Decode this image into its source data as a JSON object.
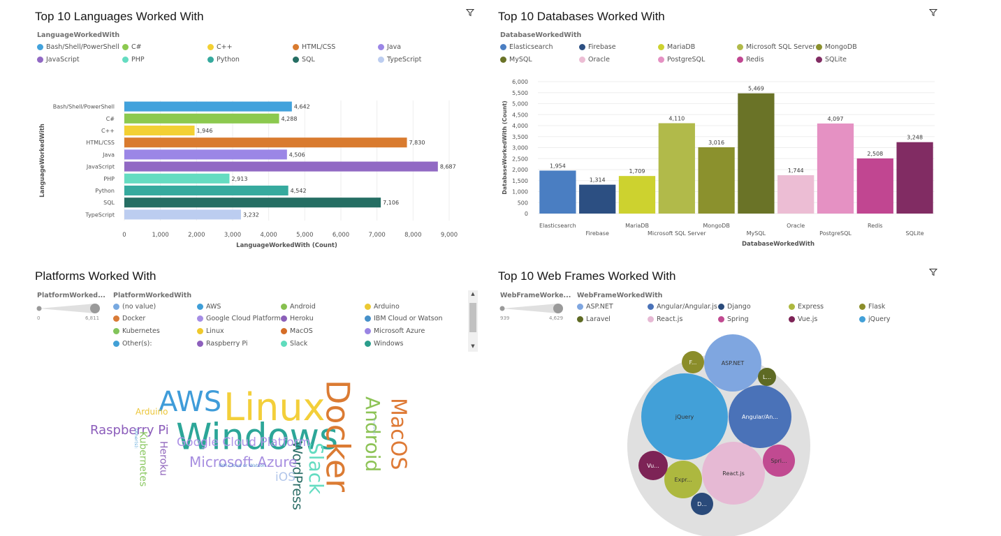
{
  "panels": {
    "languages": {
      "title": "Top 10 Languages Worked With",
      "legend_title": "LanguageWorkedWith"
    },
    "databases": {
      "title": "Top 10 Databases Worked With",
      "legend_title": "DatabaseWorkedWith"
    },
    "platforms": {
      "title": "Platforms Worked With",
      "slider_title": "PlatformWorked...",
      "slider_min": "0",
      "slider_max": "6,811",
      "legend_title": "PlatformWorkedWith",
      "legend": [
        {
          "label": "(no value)",
          "color": "#78a9e0"
        },
        {
          "label": "AWS",
          "color": "#3e9ed8"
        },
        {
          "label": "Android",
          "color": "#87c04f"
        },
        {
          "label": "Arduino",
          "color": "#ecc932"
        },
        {
          "label": "Docker",
          "color": "#d97b37"
        },
        {
          "label": "Google Cloud Platform",
          "color": "#a58de5"
        },
        {
          "label": "Heroku",
          "color": "#8b5fb8"
        },
        {
          "label": "IBM Cloud or Watson",
          "color": "#4690c9"
        },
        {
          "label": "Kubernetes",
          "color": "#82c45a"
        },
        {
          "label": "Linux",
          "color": "#efc92c"
        },
        {
          "label": "MacOS",
          "color": "#d56d27"
        },
        {
          "label": "Microsoft Azure",
          "color": "#9a84e3"
        },
        {
          "label": "Other(s):",
          "color": "#41a0d6"
        },
        {
          "label": "Raspberry Pi",
          "color": "#8d5fbc"
        },
        {
          "label": "Slack",
          "color": "#5fdcbd"
        },
        {
          "label": "Windows",
          "color": "#2a9d8b"
        }
      ],
      "cloud": [
        {
          "text": "Windows",
          "color": "#2ca698"
        },
        {
          "text": "Linux",
          "color": "#f3cf3a"
        },
        {
          "text": "Docker",
          "color": "#db7b33"
        },
        {
          "text": "AWS",
          "color": "#3f9cd9"
        },
        {
          "text": "MacOS",
          "color": "#de7a36"
        },
        {
          "text": "Android",
          "color": "#8dc356"
        },
        {
          "text": "Slack",
          "color": "#64dcc1"
        },
        {
          "text": "WordPress",
          "color": "#2b6d66"
        },
        {
          "text": "Microsoft Azure",
          "color": "#a78ee0"
        },
        {
          "text": "Google Cloud Platform",
          "color": "#ae93e6"
        },
        {
          "text": "Raspberry Pi",
          "color": "#8c5dbb"
        },
        {
          "text": "Arduino",
          "color": "#ecc638"
        },
        {
          "text": "Kubernetes",
          "color": "#8bc862"
        },
        {
          "text": "Heroku",
          "color": "#9065bc"
        },
        {
          "text": "iOS",
          "color": "#b2c6ea"
        },
        {
          "text": "IBM Cloud or Watson",
          "color": "#5a92d0"
        },
        {
          "text": "Other(s):",
          "color": "#5aa6d8"
        },
        {
          "text": "(no value)",
          "color": "#9bbae3"
        }
      ]
    },
    "webframes": {
      "title": "Top 10 Web Frames Worked With",
      "slider_title": "WebFrameWorke...",
      "slider_min": "939",
      "slider_max": "4,629",
      "legend_title": "WebFrameWorkedWith",
      "legend": [
        {
          "label": "ASP.NET",
          "color": "#7fa6e0"
        },
        {
          "label": "Angular/Angular.js",
          "color": "#4a72b8"
        },
        {
          "label": "Django",
          "color": "#2a4a7a"
        },
        {
          "label": "Express",
          "color": "#adb83f"
        },
        {
          "label": "Flask",
          "color": "#8b8d2a"
        },
        {
          "label": "Laravel",
          "color": "#5e6a24"
        },
        {
          "label": "React.js",
          "color": "#e6b9d4"
        },
        {
          "label": "Spring",
          "color": "#c14a91"
        },
        {
          "label": "Vue.js",
          "color": "#7d2356"
        },
        {
          "label": "jQuery",
          "color": "#42a0d8"
        }
      ],
      "bubbles": [
        {
          "label": "jQuery",
          "color": "#42a0d8"
        },
        {
          "label": "ASP.NET",
          "color": "#7fa6e0"
        },
        {
          "label": "Angular/An...",
          "color": "#4a72b8"
        },
        {
          "label": "React.js",
          "color": "#e6b9d4"
        },
        {
          "label": "Spri...",
          "color": "#c14a91"
        },
        {
          "label": "Expr...",
          "color": "#adb83f"
        },
        {
          "label": "Vu...",
          "color": "#7d2356"
        },
        {
          "label": "D...",
          "color": "#2a4a7a"
        },
        {
          "label": "F...",
          "color": "#8b8d2a"
        },
        {
          "label": "L...",
          "color": "#5e6a24"
        }
      ]
    }
  },
  "chart_data": [
    {
      "type": "bar",
      "orientation": "horizontal",
      "title": "Top 10 Languages Worked With",
      "xlabel": "LanguageWorkedWith (Count)",
      "ylabel": "LanguageWorkedWith",
      "xlim": [
        0,
        9000
      ],
      "xticks": [
        "0",
        "1,000",
        "2,000",
        "3,000",
        "4,000",
        "5,000",
        "6,000",
        "7,000",
        "8,000",
        "9,000"
      ],
      "categories": [
        "Bash/Shell/PowerShell",
        "C#",
        "C++",
        "HTML/CSS",
        "Java",
        "JavaScript",
        "PHP",
        "Python",
        "SQL",
        "TypeScript"
      ],
      "values": [
        4642,
        4288,
        1946,
        7830,
        4506,
        8687,
        2913,
        4542,
        7106,
        3232
      ],
      "value_labels": [
        "4,642",
        "4,288",
        "1,946",
        "7,830",
        "4,506",
        "8,687",
        "2,913",
        "4,542",
        "7,106",
        "3,232"
      ],
      "colors": [
        "#42a2dc",
        "#8cc94f",
        "#f3d033",
        "#d97b2f",
        "#9b86e6",
        "#9169c4",
        "#65dcc1",
        "#36aa9e",
        "#256e63",
        "#bccdf0"
      ],
      "grid": true,
      "legend": "top"
    },
    {
      "type": "bar",
      "orientation": "vertical",
      "title": "Top 10 Databases Worked With",
      "xlabel": "DatabaseWorkedWith",
      "ylabel": "DatabaseWorkedWith (Count)",
      "ylim": [
        0,
        6000
      ],
      "yticks": [
        "0",
        "500",
        "1,000",
        "1,500",
        "2,000",
        "2,500",
        "3,000",
        "3,500",
        "4,000",
        "4,500",
        "5,000",
        "5,500",
        "6,000"
      ],
      "categories": [
        "Elasticsearch",
        "Firebase",
        "MariaDB",
        "Microsoft SQL Server",
        "MongoDB",
        "MySQL",
        "Oracle",
        "PostgreSQL",
        "Redis",
        "SQLite"
      ],
      "values": [
        1954,
        1314,
        1709,
        4110,
        3016,
        5469,
        1744,
        4097,
        2508,
        3248
      ],
      "value_labels": [
        "1,954",
        "1,314",
        "1,709",
        "4,110",
        "3,016",
        "5,469",
        "1,744",
        "4,097",
        "2,508",
        "3,248"
      ],
      "colors": [
        "#4a7ec2",
        "#2c4f82",
        "#cdd22f",
        "#b1ba4a",
        "#8b912d",
        "#6a7327",
        "#ecbdd4",
        "#e591c3",
        "#c14691",
        "#812c63"
      ],
      "grid": true,
      "legend": "top"
    }
  ]
}
